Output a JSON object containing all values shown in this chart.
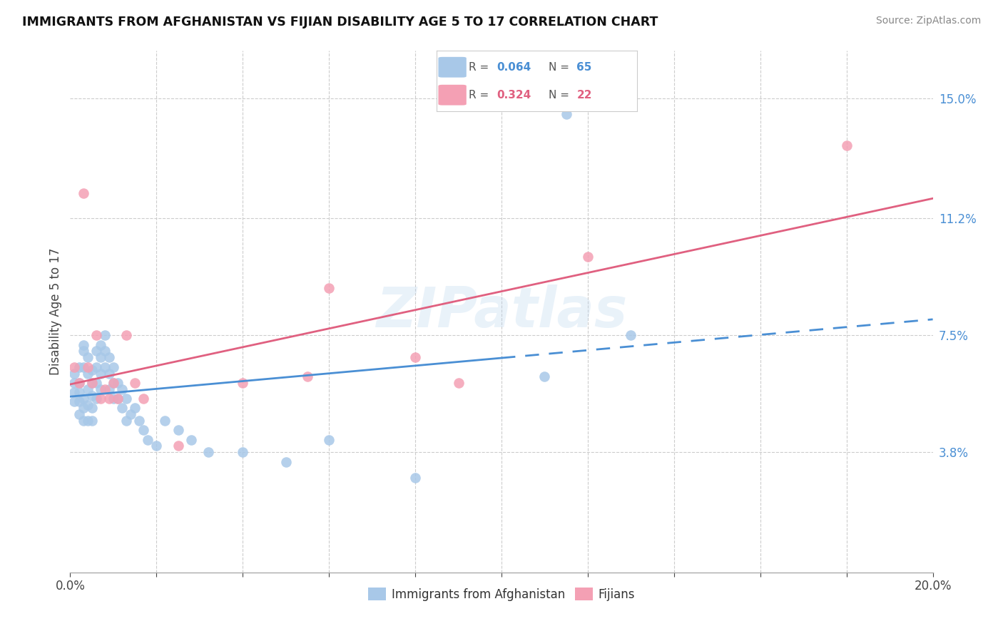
{
  "title": "IMMIGRANTS FROM AFGHANISTAN VS FIJIAN DISABILITY AGE 5 TO 17 CORRELATION CHART",
  "source": "Source: ZipAtlas.com",
  "ylabel": "Disability Age 5 to 17",
  "xlim": [
    0.0,
    0.2
  ],
  "ylim": [
    0.0,
    0.165
  ],
  "xtick_positions": [
    0.0,
    0.02,
    0.04,
    0.06,
    0.08,
    0.1,
    0.12,
    0.14,
    0.16,
    0.18,
    0.2
  ],
  "xticklabels_show": {
    "0.0": "0.0%",
    "0.20": "20.0%"
  },
  "ytick_right_labels": [
    "15.0%",
    "11.2%",
    "7.5%",
    "3.8%"
  ],
  "ytick_right_values": [
    0.15,
    0.112,
    0.075,
    0.038
  ],
  "afghanistan_R": 0.064,
  "afghanistan_N": 65,
  "fijian_R": 0.324,
  "fijian_N": 22,
  "afghanistan_color": "#a8c8e8",
  "fijian_color": "#f4a0b4",
  "afghanistan_line_color": "#4a8fd4",
  "fijian_line_color": "#e06080",
  "watermark": "ZIPatlas",
  "af_line_solid_end": 0.1,
  "afghanistan_x": [
    0.001,
    0.001,
    0.001,
    0.001,
    0.002,
    0.002,
    0.002,
    0.002,
    0.002,
    0.003,
    0.003,
    0.003,
    0.003,
    0.003,
    0.003,
    0.004,
    0.004,
    0.004,
    0.004,
    0.004,
    0.005,
    0.005,
    0.005,
    0.005,
    0.005,
    0.006,
    0.006,
    0.006,
    0.006,
    0.007,
    0.007,
    0.007,
    0.007,
    0.008,
    0.008,
    0.008,
    0.009,
    0.009,
    0.009,
    0.01,
    0.01,
    0.01,
    0.011,
    0.011,
    0.012,
    0.012,
    0.013,
    0.013,
    0.014,
    0.015,
    0.016,
    0.017,
    0.018,
    0.02,
    0.022,
    0.025,
    0.028,
    0.032,
    0.04,
    0.05,
    0.06,
    0.08,
    0.11,
    0.115,
    0.13
  ],
  "afghanistan_y": [
    0.063,
    0.06,
    0.057,
    0.054,
    0.065,
    0.06,
    0.057,
    0.054,
    0.05,
    0.072,
    0.07,
    0.065,
    0.055,
    0.052,
    0.048,
    0.068,
    0.063,
    0.058,
    0.053,
    0.048,
    0.064,
    0.06,
    0.056,
    0.052,
    0.048,
    0.07,
    0.065,
    0.06,
    0.055,
    0.072,
    0.068,
    0.063,
    0.058,
    0.075,
    0.07,
    0.065,
    0.068,
    0.063,
    0.058,
    0.065,
    0.06,
    0.055,
    0.06,
    0.055,
    0.058,
    0.052,
    0.055,
    0.048,
    0.05,
    0.052,
    0.048,
    0.045,
    0.042,
    0.04,
    0.048,
    0.045,
    0.042,
    0.038,
    0.038,
    0.035,
    0.042,
    0.03,
    0.062,
    0.145,
    0.075
  ],
  "fijian_x": [
    0.001,
    0.002,
    0.003,
    0.004,
    0.005,
    0.006,
    0.007,
    0.008,
    0.009,
    0.01,
    0.011,
    0.013,
    0.015,
    0.017,
    0.025,
    0.04,
    0.055,
    0.06,
    0.08,
    0.09,
    0.12,
    0.18
  ],
  "fijian_y": [
    0.065,
    0.06,
    0.12,
    0.065,
    0.06,
    0.075,
    0.055,
    0.058,
    0.055,
    0.06,
    0.055,
    0.075,
    0.06,
    0.055,
    0.04,
    0.06,
    0.062,
    0.09,
    0.068,
    0.06,
    0.1,
    0.135
  ]
}
